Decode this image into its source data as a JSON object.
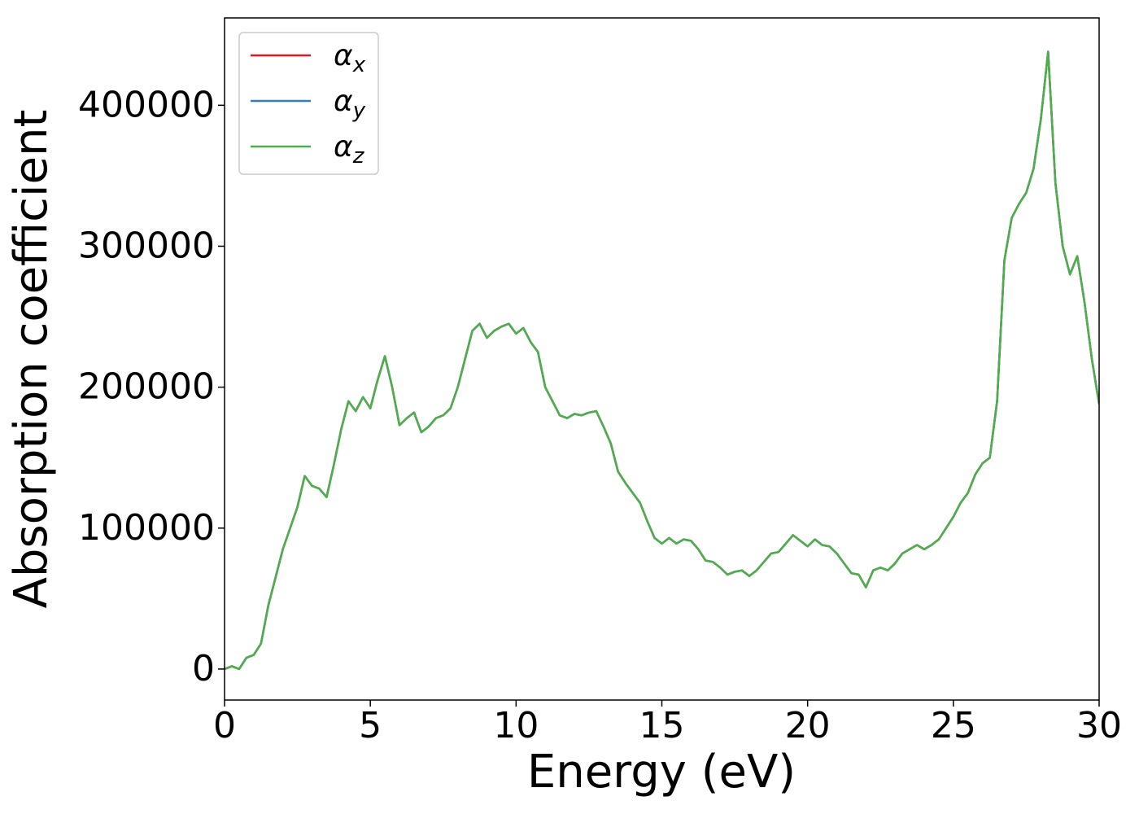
{
  "chart_data": {
    "type": "line",
    "xlabel": "Energy (eV)",
    "ylabel": "Absorption coefficient",
    "xlim": [
      0,
      30
    ],
    "ylim": [
      -22000,
      462000
    ],
    "xticks": [
      0,
      5,
      10,
      15,
      20,
      25,
      30
    ],
    "yticks": [
      0,
      100000,
      200000,
      300000,
      400000
    ],
    "legend": "upper left",
    "x": [
      0,
      0.25,
      0.5,
      0.75,
      1,
      1.25,
      1.5,
      1.75,
      2,
      2.25,
      2.5,
      2.75,
      3,
      3.25,
      3.5,
      3.75,
      4,
      4.25,
      4.5,
      4.75,
      5,
      5.25,
      5.5,
      5.75,
      6,
      6.25,
      6.5,
      6.75,
      7,
      7.25,
      7.5,
      7.75,
      8,
      8.25,
      8.5,
      8.75,
      9,
      9.25,
      9.5,
      9.75,
      10,
      10.25,
      10.5,
      10.75,
      11,
      11.25,
      11.5,
      11.75,
      12,
      12.25,
      12.5,
      12.75,
      13,
      13.25,
      13.5,
      13.75,
      14,
      14.25,
      14.5,
      14.75,
      15,
      15.25,
      15.5,
      15.75,
      16,
      16.25,
      16.5,
      16.75,
      17,
      17.25,
      17.5,
      17.75,
      18,
      18.25,
      18.5,
      18.75,
      19,
      19.25,
      19.5,
      19.75,
      20,
      20.25,
      20.5,
      20.75,
      21,
      21.25,
      21.5,
      21.75,
      22,
      22.25,
      22.5,
      22.75,
      23,
      23.25,
      23.5,
      23.75,
      24,
      24.25,
      24.5,
      24.75,
      25,
      25.25,
      25.5,
      25.75,
      26,
      26.25,
      26.5,
      26.75,
      27,
      27.25,
      27.5,
      27.75,
      28,
      28.25,
      28.5,
      28.75,
      29,
      29.25,
      29.5,
      29.75,
      30
    ],
    "series": [
      {
        "name": "αx",
        "color": "#e41a1c",
        "values": [
          0,
          2000,
          0,
          8000,
          10000,
          18000,
          45000,
          65000,
          85000,
          100000,
          115000,
          137000,
          130000,
          128000,
          122000,
          145000,
          170000,
          190000,
          183000,
          193000,
          185000,
          205000,
          222000,
          200000,
          173000,
          178000,
          182000,
          168000,
          172000,
          178000,
          180000,
          185000,
          200000,
          220000,
          240000,
          245000,
          235000,
          240000,
          243000,
          245000,
          238000,
          242000,
          232000,
          225000,
          200000,
          190000,
          180000,
          178000,
          181000,
          180000,
          182000,
          183000,
          172000,
          160000,
          140000,
          132000,
          125000,
          118000,
          105000,
          93000,
          89000,
          93000,
          89000,
          92000,
          91000,
          85000,
          77000,
          76000,
          72000,
          67000,
          69000,
          70000,
          66000,
          70000,
          76000,
          82000,
          83000,
          89000,
          95000,
          91000,
          87000,
          92000,
          88000,
          87000,
          82000,
          75000,
          68000,
          67000,
          58000,
          70000,
          72000,
          70000,
          75000,
          82000,
          85000,
          88000,
          85000,
          88000,
          92000,
          100000,
          108000,
          118000,
          125000,
          138000,
          146000,
          150000,
          190000,
          290000,
          320000,
          330000,
          338000,
          355000,
          390000,
          438000,
          345000,
          300000,
          280000,
          293000,
          260000,
          220000,
          188000
        ]
      },
      {
        "name": "αy",
        "color": "#377eb8",
        "values": [
          0,
          2000,
          0,
          8000,
          10000,
          18000,
          45000,
          65000,
          85000,
          100000,
          115000,
          137000,
          130000,
          128000,
          122000,
          145000,
          170000,
          190000,
          183000,
          193000,
          185000,
          205000,
          222000,
          200000,
          173000,
          178000,
          182000,
          168000,
          172000,
          178000,
          180000,
          185000,
          200000,
          220000,
          240000,
          245000,
          235000,
          240000,
          243000,
          245000,
          238000,
          242000,
          232000,
          225000,
          200000,
          190000,
          180000,
          178000,
          181000,
          180000,
          182000,
          183000,
          172000,
          160000,
          140000,
          132000,
          125000,
          118000,
          105000,
          93000,
          89000,
          93000,
          89000,
          92000,
          91000,
          85000,
          77000,
          76000,
          72000,
          67000,
          69000,
          70000,
          66000,
          70000,
          76000,
          82000,
          83000,
          89000,
          95000,
          91000,
          87000,
          92000,
          88000,
          87000,
          82000,
          75000,
          68000,
          67000,
          58000,
          70000,
          72000,
          70000,
          75000,
          82000,
          85000,
          88000,
          85000,
          88000,
          92000,
          100000,
          108000,
          118000,
          125000,
          138000,
          146000,
          150000,
          190000,
          290000,
          320000,
          330000,
          338000,
          355000,
          390000,
          438000,
          345000,
          300000,
          280000,
          293000,
          260000,
          220000,
          188000
        ]
      },
      {
        "name": "αz",
        "color": "#4daf4a",
        "values": [
          0,
          2000,
          0,
          8000,
          10000,
          18000,
          45000,
          65000,
          85000,
          100000,
          115000,
          137000,
          130000,
          128000,
          122000,
          145000,
          170000,
          190000,
          183000,
          193000,
          185000,
          205000,
          222000,
          200000,
          173000,
          178000,
          182000,
          168000,
          172000,
          178000,
          180000,
          185000,
          200000,
          220000,
          240000,
          245000,
          235000,
          240000,
          243000,
          245000,
          238000,
          242000,
          232000,
          225000,
          200000,
          190000,
          180000,
          178000,
          181000,
          180000,
          182000,
          183000,
          172000,
          160000,
          140000,
          132000,
          125000,
          118000,
          105000,
          93000,
          89000,
          93000,
          89000,
          92000,
          91000,
          85000,
          77000,
          76000,
          72000,
          67000,
          69000,
          70000,
          66000,
          70000,
          76000,
          82000,
          83000,
          89000,
          95000,
          91000,
          87000,
          92000,
          88000,
          87000,
          82000,
          75000,
          68000,
          67000,
          58000,
          70000,
          72000,
          70000,
          75000,
          82000,
          85000,
          88000,
          85000,
          88000,
          92000,
          100000,
          108000,
          118000,
          125000,
          138000,
          146000,
          150000,
          190000,
          290000,
          320000,
          330000,
          338000,
          355000,
          390000,
          438000,
          345000,
          300000,
          280000,
          293000,
          260000,
          220000,
          188000
        ]
      }
    ]
  }
}
